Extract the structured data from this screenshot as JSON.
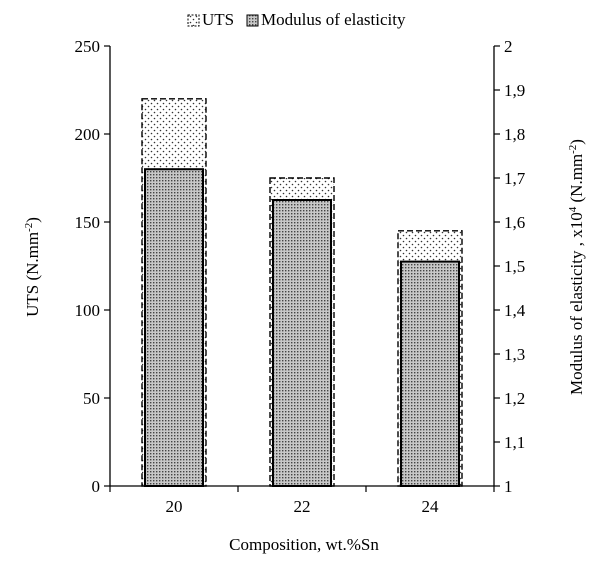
{
  "chart_data": {
    "type": "bar",
    "categories": [
      "20",
      "22",
      "24"
    ],
    "xlabel": "Composition, wt.%Sn",
    "series": [
      {
        "name": "UTS",
        "axis": "left",
        "values": [
          220,
          175,
          145
        ],
        "pattern": "sparse dots, dashed outline"
      },
      {
        "name": "Modulus of elasticity",
        "axis": "right",
        "values": [
          1.72,
          1.65,
          1.51
        ],
        "pattern": "dense dots, solid outline"
      }
    ],
    "y_left": {
      "label_main": "UTS (N.mm",
      "label_sup": "-2",
      "label_end": ")",
      "lim": [
        0,
        250
      ],
      "ticks": [
        "0",
        "50",
        "100",
        "150",
        "200",
        "250"
      ]
    },
    "y_right": {
      "label_main": "Modulus of elasticity , x10",
      "label_sup1": "4",
      "label_mid": " (N.mm",
      "label_sup2": "-2",
      "label_end": ")",
      "lim": [
        1,
        2
      ],
      "ticks": [
        "1",
        "1,1",
        "1,2",
        "1,3",
        "1,4",
        "1,5",
        "1,6",
        "1,7",
        "1,8",
        "1,9",
        "2"
      ]
    },
    "legend": {
      "position": "top"
    },
    "grid": false
  }
}
